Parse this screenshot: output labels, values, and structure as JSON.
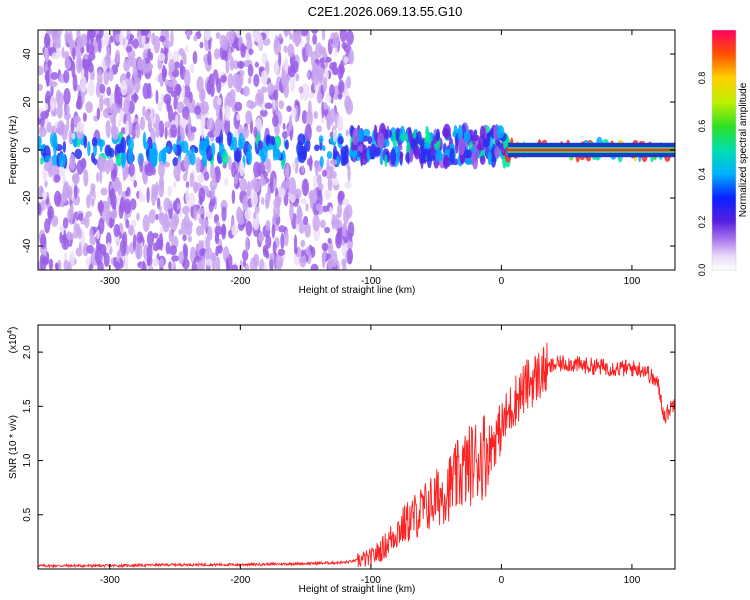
{
  "title": "C2E1.2026.069.13.55.G10",
  "colors": {
    "line": "#ff2020",
    "frame": "#000000",
    "spectrogram_low": "#e6d8f4",
    "spectrogram_mid": "#7a2ae0",
    "spectrogram_high": "#1a20e0"
  },
  "chart_data": [
    {
      "type": "heatmap",
      "title": "C2E1.2026.069.13.55.G10",
      "xlabel": "Height of straight line (km)",
      "ylabel": "Frequency (Hz)",
      "xlim": [
        -355,
        133
      ],
      "ylim": [
        -50,
        50
      ],
      "xticks": [
        -300,
        -200,
        -100,
        0,
        100
      ],
      "xtick_labels": [
        "-300",
        "-200",
        "-100",
        "0",
        "100"
      ],
      "yticks": [
        -40,
        -20,
        0,
        20,
        40
      ],
      "ytick_labels": [
        "-40",
        "-20",
        "0",
        "20",
        "40"
      ],
      "colorbar": {
        "label": "Normalized spectral amplitude",
        "range": [
          0,
          1
        ],
        "ticks": [
          0.0,
          0.2,
          0.4,
          0.6,
          0.8
        ],
        "tick_labels": [
          "0.0",
          "0.2",
          "0.4",
          "0.6",
          "0.8"
        ],
        "colormap": "rainbow"
      },
      "description_regions": [
        {
          "x_range": [
            -355,
            -115
          ],
          "freq_range": [
            -50,
            50
          ],
          "amplitude": 0.15
        },
        {
          "x_range": [
            -115,
            5
          ],
          "freq_range": [
            -5,
            8
          ],
          "amplitude": 0.4
        },
        {
          "x_range": [
            5,
            133
          ],
          "freq_range": [
            -2,
            2
          ],
          "amplitude": 0.95
        }
      ]
    },
    {
      "type": "line",
      "xlabel": "Height of straight line (km)",
      "ylabel": "SNR (10 * v/v)",
      "scale_label": "(x10",
      "scale_exponent": "4",
      "xlim": [
        -355,
        133
      ],
      "ylim": [
        0,
        2.25
      ],
      "xticks": [
        -300,
        -200,
        -100,
        0,
        100
      ],
      "xtick_labels": [
        "-300",
        "-200",
        "-100",
        "0",
        "100"
      ],
      "yticks": [
        0.5,
        1.0,
        1.5,
        2.0
      ],
      "ytick_labels": [
        "0.5",
        "1.0",
        "1.5",
        "2.0"
      ],
      "series": [
        {
          "x": [
            -355,
            -300,
            -250,
            -200,
            -150,
            -120,
            -100,
            -90,
            -80,
            -70,
            -60,
            -50,
            -40,
            -30,
            -20,
            -10,
            0,
            10,
            20,
            30,
            40,
            50,
            60,
            70,
            80,
            90,
            100,
            110,
            120,
            125,
            133
          ],
          "y": [
            0.03,
            0.03,
            0.04,
            0.04,
            0.05,
            0.06,
            0.1,
            0.2,
            0.35,
            0.45,
            0.55,
            0.65,
            0.75,
            0.9,
            1.0,
            1.1,
            1.3,
            1.55,
            1.7,
            1.8,
            1.88,
            1.9,
            1.88,
            1.87,
            1.86,
            1.85,
            1.85,
            1.84,
            1.7,
            1.4,
            1.55
          ]
        }
      ]
    }
  ]
}
